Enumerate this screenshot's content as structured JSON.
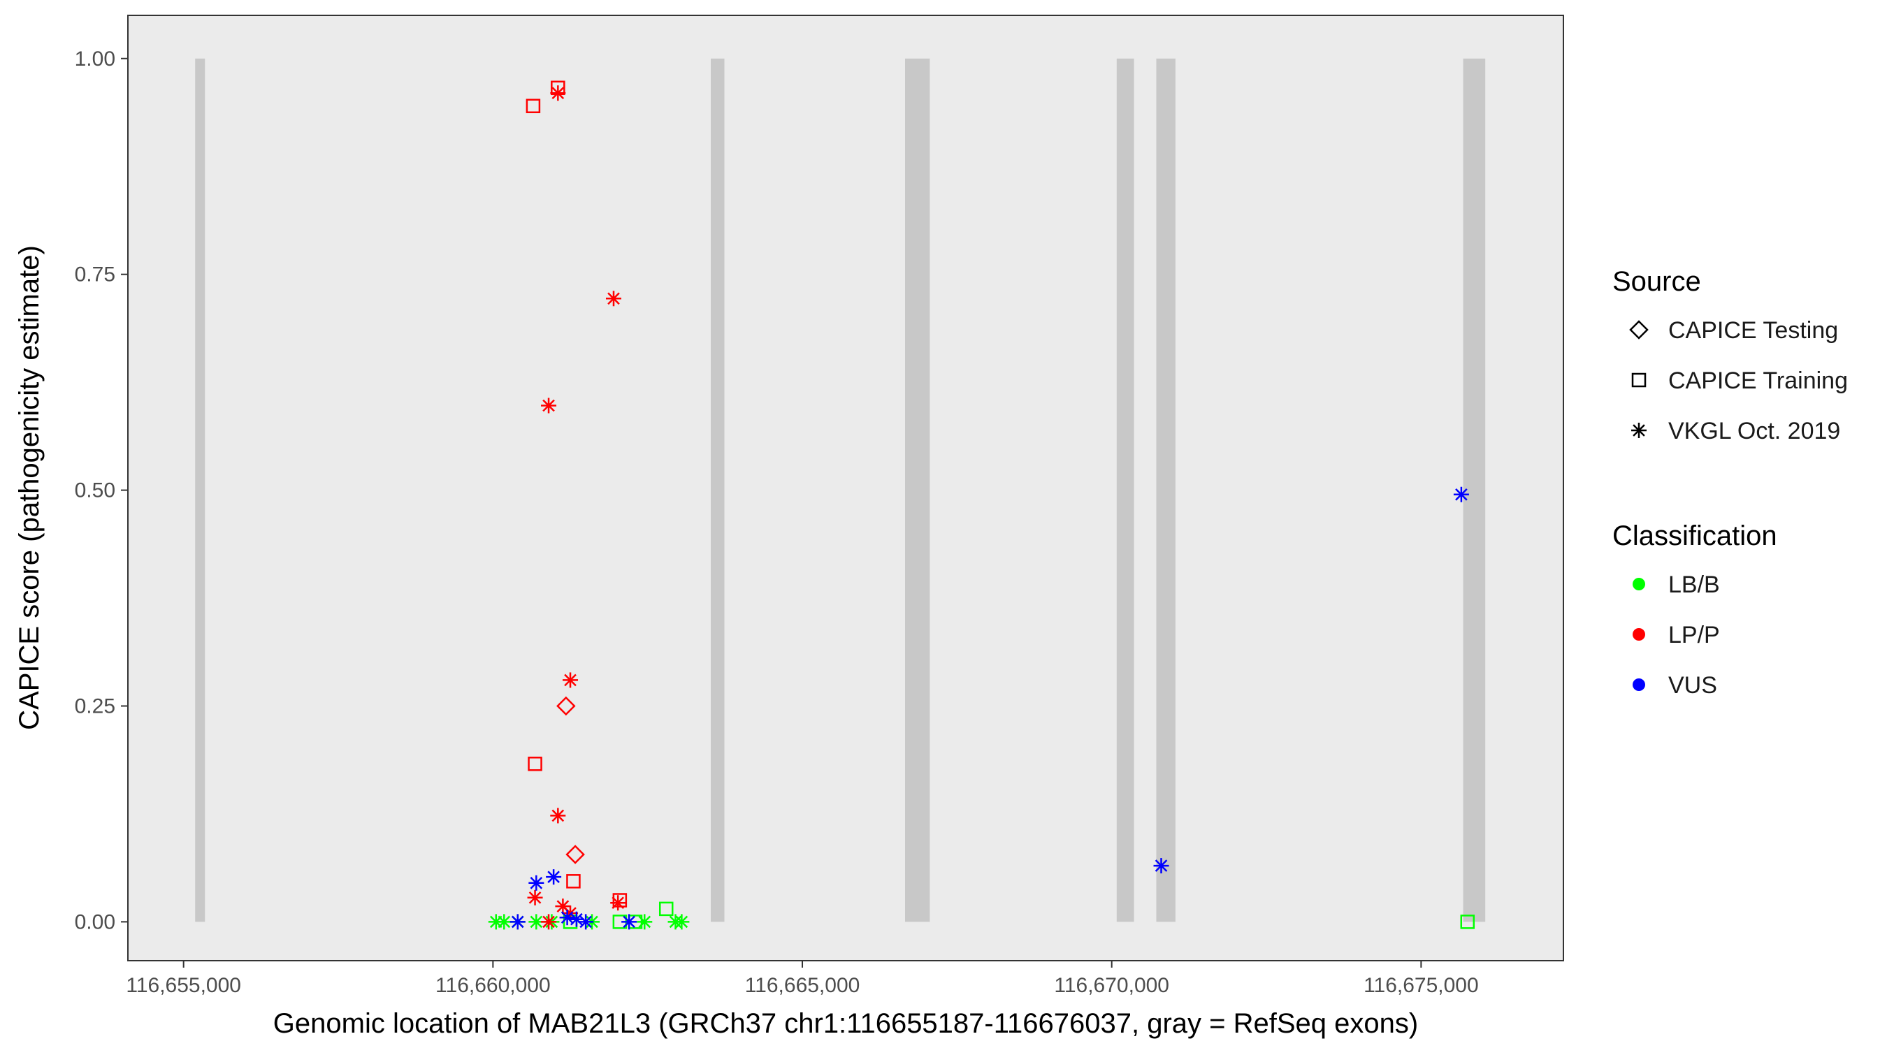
{
  "chart_data": {
    "type": "scatter",
    "title": "",
    "xlabel": "Genomic location of MAB21L3 (GRCh37 chr1:116655187-116676037, gray = RefSeq exons)",
    "ylabel": "CAPICE score (pathogenicity estimate)",
    "xlim": [
      116654100,
      116677300
    ],
    "ylim": [
      -0.045,
      1.05
    ],
    "x_ticks": [
      116655000,
      116660000,
      116665000,
      116670000,
      116675000
    ],
    "x_tick_labels": [
      "116,655,000",
      "116,660,000",
      "116,665,000",
      "116,670,000",
      "116,675,000"
    ],
    "y_ticks": [
      0,
      0.25,
      0.5,
      0.75,
      1.0
    ],
    "y_tick_labels": [
      "0.00",
      "0.25",
      "0.50",
      "0.75",
      "1.00"
    ],
    "grid": false,
    "background": "#EBEBEB",
    "exons": [
      {
        "start": 116655187,
        "end": 116655345
      },
      {
        "start": 116663520,
        "end": 116663740
      },
      {
        "start": 116666660,
        "end": 116667060
      },
      {
        "start": 116670080,
        "end": 116670360
      },
      {
        "start": 116670720,
        "end": 116671030
      },
      {
        "start": 116675680,
        "end": 116676037
      }
    ],
    "exon_color": "#C8C8C8",
    "legend": {
      "placement": "right",
      "source_title": "Source",
      "source_entries": [
        {
          "label": "CAPICE Testing",
          "shape": "diamond"
        },
        {
          "label": "CAPICE Training",
          "shape": "square"
        },
        {
          "label": "VKGL Oct. 2019",
          "shape": "asterisk"
        }
      ],
      "class_title": "Classification",
      "class_entries": [
        {
          "label": "LB/B",
          "color": "#00FF00"
        },
        {
          "label": "LP/P",
          "color": "#FF0000"
        },
        {
          "label": "VUS",
          "color": "#0000FF"
        }
      ]
    },
    "series": [
      {
        "name": "LB/B",
        "color": "#00FF00",
        "points": [
          {
            "x": 116660050,
            "y": 0.0,
            "shape": "asterisk"
          },
          {
            "x": 116660180,
            "y": 0.0,
            "shape": "asterisk"
          },
          {
            "x": 116660400,
            "y": 0.0,
            "shape": "asterisk"
          },
          {
            "x": 116660700,
            "y": 0.0,
            "shape": "asterisk"
          },
          {
            "x": 116660950,
            "y": 0.0,
            "shape": "asterisk"
          },
          {
            "x": 116661250,
            "y": 0.0,
            "shape": "square"
          },
          {
            "x": 116661600,
            "y": 0.0,
            "shape": "asterisk"
          },
          {
            "x": 116662050,
            "y": 0.0,
            "shape": "square"
          },
          {
            "x": 116662300,
            "y": 0.0,
            "shape": "square"
          },
          {
            "x": 116662450,
            "y": 0.0,
            "shape": "asterisk"
          },
          {
            "x": 116662800,
            "y": 0.015,
            "shape": "square"
          },
          {
            "x": 116662950,
            "y": 0.0,
            "shape": "asterisk"
          },
          {
            "x": 116663050,
            "y": 0.0,
            "shape": "asterisk"
          },
          {
            "x": 116675750,
            "y": 0.0,
            "shape": "square"
          }
        ]
      },
      {
        "name": "LP/P",
        "color": "#FF0000",
        "points": [
          {
            "x": 116660650,
            "y": 0.945,
            "shape": "square"
          },
          {
            "x": 116661050,
            "y": 0.966,
            "shape": "square"
          },
          {
            "x": 116661050,
            "y": 0.96,
            "shape": "asterisk"
          },
          {
            "x": 116661950,
            "y": 0.722,
            "shape": "asterisk"
          },
          {
            "x": 116660900,
            "y": 0.598,
            "shape": "asterisk"
          },
          {
            "x": 116661250,
            "y": 0.28,
            "shape": "asterisk"
          },
          {
            "x": 116661180,
            "y": 0.25,
            "shape": "diamond"
          },
          {
            "x": 116660680,
            "y": 0.183,
            "shape": "square"
          },
          {
            "x": 116661050,
            "y": 0.123,
            "shape": "asterisk"
          },
          {
            "x": 116661330,
            "y": 0.078,
            "shape": "diamond"
          },
          {
            "x": 116661300,
            "y": 0.047,
            "shape": "square"
          },
          {
            "x": 116660680,
            "y": 0.028,
            "shape": "asterisk"
          },
          {
            "x": 116661130,
            "y": 0.018,
            "shape": "asterisk"
          },
          {
            "x": 116661250,
            "y": 0.01,
            "shape": "asterisk"
          },
          {
            "x": 116662050,
            "y": 0.025,
            "shape": "square"
          },
          {
            "x": 116662020,
            "y": 0.022,
            "shape": "asterisk"
          },
          {
            "x": 116660900,
            "y": 0.0,
            "shape": "asterisk"
          }
        ]
      },
      {
        "name": "VUS",
        "color": "#0000FF",
        "points": [
          {
            "x": 116660400,
            "y": 0.0,
            "shape": "asterisk"
          },
          {
            "x": 116660700,
            "y": 0.045,
            "shape": "asterisk"
          },
          {
            "x": 116660980,
            "y": 0.052,
            "shape": "asterisk"
          },
          {
            "x": 116661200,
            "y": 0.005,
            "shape": "asterisk"
          },
          {
            "x": 116661350,
            "y": 0.003,
            "shape": "asterisk"
          },
          {
            "x": 116661500,
            "y": 0.0,
            "shape": "asterisk"
          },
          {
            "x": 116662200,
            "y": 0.0,
            "shape": "asterisk"
          },
          {
            "x": 116670800,
            "y": 0.065,
            "shape": "asterisk"
          },
          {
            "x": 116675650,
            "y": 0.495,
            "shape": "asterisk"
          }
        ]
      }
    ]
  }
}
